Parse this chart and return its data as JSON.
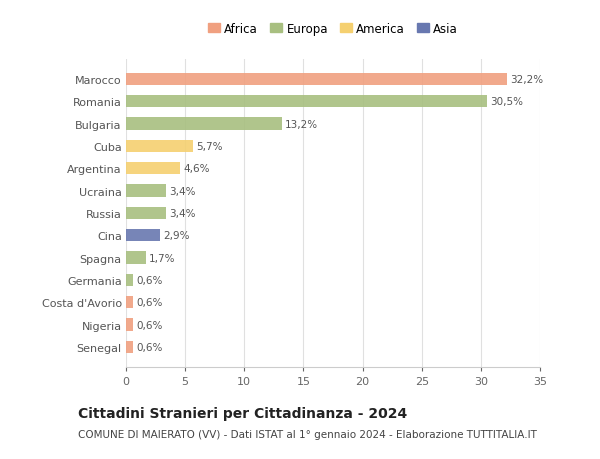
{
  "categories": [
    "Senegal",
    "Nigeria",
    "Costa d'Avorio",
    "Germania",
    "Spagna",
    "Cina",
    "Russia",
    "Ucraina",
    "Argentina",
    "Cuba",
    "Bulgaria",
    "Romania",
    "Marocco"
  ],
  "values": [
    0.6,
    0.6,
    0.6,
    0.6,
    1.7,
    2.9,
    3.4,
    3.4,
    4.6,
    5.7,
    13.2,
    30.5,
    32.2
  ],
  "colors": [
    "#F0A080",
    "#F0A080",
    "#F0A080",
    "#A8BF80",
    "#A8BF80",
    "#6878B0",
    "#A8BF80",
    "#A8BF80",
    "#F5D070",
    "#F5D070",
    "#A8BF80",
    "#A8BF80",
    "#F0A080"
  ],
  "labels": [
    "0,6%",
    "0,6%",
    "0,6%",
    "0,6%",
    "1,7%",
    "2,9%",
    "3,4%",
    "3,4%",
    "4,6%",
    "5,7%",
    "13,2%",
    "30,5%",
    "32,2%"
  ],
  "legend": [
    {
      "label": "Africa",
      "color": "#F0A080"
    },
    {
      "label": "Europa",
      "color": "#A8BF80"
    },
    {
      "label": "America",
      "color": "#F5D070"
    },
    {
      "label": "Asia",
      "color": "#6878B0"
    }
  ],
  "xlim": [
    0,
    35
  ],
  "xticks": [
    0,
    5,
    10,
    15,
    20,
    25,
    30,
    35
  ],
  "title": "Cittadini Stranieri per Cittadinanza - 2024",
  "subtitle": "COMUNE DI MAIERATO (VV) - Dati ISTAT al 1° gennaio 2024 - Elaborazione TUTTITALIA.IT",
  "background_color": "#ffffff",
  "grid_color": "#e0e0e0",
  "bar_height": 0.55,
  "label_fontsize": 7.5,
  "ytick_fontsize": 8,
  "xtick_fontsize": 8,
  "title_fontsize": 10,
  "subtitle_fontsize": 7.5,
  "legend_fontsize": 8.5
}
